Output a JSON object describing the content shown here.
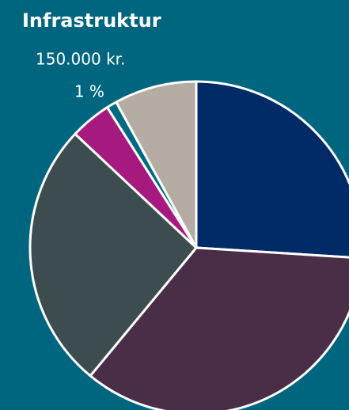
{
  "chart_data": {
    "type": "pie",
    "title": "Infrastruktur",
    "subtitle": "150.000 kr.",
    "values": [
      26,
      35,
      26,
      4,
      1,
      8
    ],
    "value_labels": [
      null,
      null,
      null,
      null,
      "1 %",
      null
    ],
    "colors": [
      "#002b66",
      "#4a2e48",
      "#3d4c4e",
      "#a6197f",
      "#006a80",
      "#b5aca4"
    ]
  }
}
